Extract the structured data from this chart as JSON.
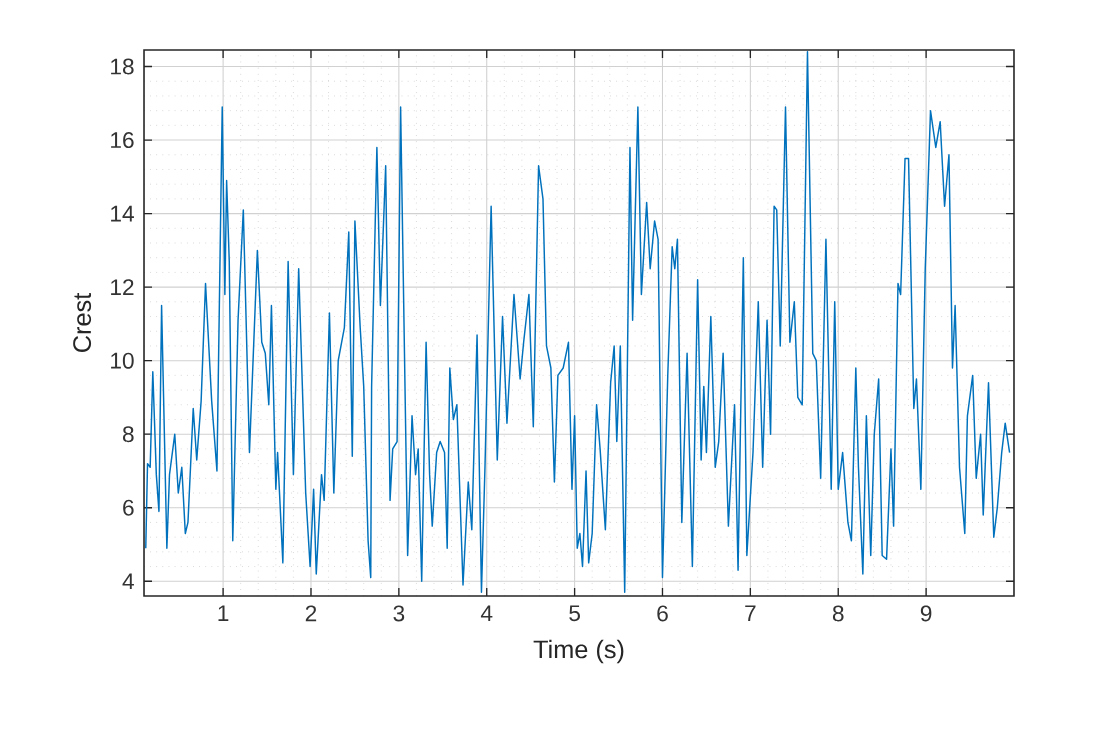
{
  "chart_data": {
    "type": "line",
    "xlabel": "Time (s)",
    "ylabel": "Crest",
    "xlim": [
      0.1,
      10
    ],
    "ylim": [
      3.6,
      18.45
    ],
    "xticks": [
      1,
      2,
      3,
      4,
      5,
      6,
      7,
      8,
      9
    ],
    "yticks": [
      4,
      6,
      8,
      10,
      12,
      14,
      16,
      18
    ],
    "grid": true,
    "line_style": "solid",
    "marker": "none",
    "series": [
      {
        "color": "#0072bd",
        "x": [
          0.12,
          0.14,
          0.17,
          0.2,
          0.24,
          0.27,
          0.3,
          0.36,
          0.39,
          0.45,
          0.49,
          0.53,
          0.57,
          0.6,
          0.66,
          0.7,
          0.75,
          0.8,
          0.87,
          0.93,
          0.99,
          1.02,
          1.04,
          1.07,
          1.11,
          1.17,
          1.23,
          1.3,
          1.39,
          1.44,
          1.48,
          1.52,
          1.55,
          1.6,
          1.62,
          1.68,
          1.74,
          1.8,
          1.86,
          1.94,
          1.99,
          2.03,
          2.06,
          2.12,
          2.15,
          2.21,
          2.26,
          2.31,
          2.38,
          2.43,
          2.47,
          2.5,
          2.56,
          2.6,
          2.65,
          2.68,
          2.69,
          2.75,
          2.79,
          2.85,
          2.9,
          2.93,
          2.98,
          3.02,
          3.1,
          3.15,
          3.19,
          3.22,
          3.26,
          3.31,
          3.35,
          3.38,
          3.43,
          3.47,
          3.52,
          3.55,
          3.58,
          3.62,
          3.66,
          3.73,
          3.79,
          3.83,
          3.89,
          3.94,
          3.98,
          4.05,
          4.12,
          4.18,
          4.23,
          4.31,
          4.38,
          4.42,
          4.48,
          4.53,
          4.59,
          4.64,
          4.68,
          4.73,
          4.77,
          4.81,
          4.87,
          4.93,
          4.97,
          5.0,
          5.03,
          5.06,
          5.09,
          5.13,
          5.16,
          5.2,
          5.25,
          5.29,
          5.35,
          5.41,
          5.45,
          5.48,
          5.52,
          5.57,
          5.63,
          5.66,
          5.72,
          5.76,
          5.82,
          5.86,
          5.91,
          5.95,
          6.0,
          6.06,
          6.11,
          6.14,
          6.17,
          6.22,
          6.28,
          6.34,
          6.4,
          6.44,
          6.47,
          6.5,
          6.55,
          6.6,
          6.64,
          6.69,
          6.75,
          6.82,
          6.86,
          6.92,
          6.96,
          7.03,
          7.09,
          7.14,
          7.19,
          7.23,
          7.27,
          7.3,
          7.34,
          7.4,
          7.45,
          7.5,
          7.54,
          7.59,
          7.65,
          7.71,
          7.75,
          7.8,
          7.86,
          7.92,
          7.96,
          8.0,
          8.05,
          8.11,
          8.15,
          8.2,
          8.23,
          8.28,
          8.32,
          8.37,
          8.41,
          8.46,
          8.5,
          8.55,
          8.6,
          8.63,
          8.68,
          8.71,
          8.76,
          8.8,
          8.86,
          8.89,
          8.94,
          8.99,
          9.05,
          9.11,
          9.16,
          9.21,
          9.26,
          9.3,
          9.33,
          9.38,
          9.44,
          9.47,
          9.53,
          9.57,
          9.62,
          9.65,
          9.71,
          9.77,
          9.81,
          9.86,
          9.9,
          9.95
        ],
        "values": [
          4.9,
          7.2,
          7.1,
          9.7,
          6.9,
          5.9,
          11.5,
          4.9,
          6.9,
          8.0,
          6.4,
          7.1,
          5.3,
          5.6,
          8.7,
          7.3,
          8.9,
          12.1,
          8.9,
          7.0,
          16.9,
          11.8,
          14.9,
          12.7,
          5.1,
          11.1,
          14.1,
          7.5,
          13.0,
          10.5,
          10.2,
          8.8,
          11.5,
          6.5,
          7.5,
          4.5,
          12.7,
          6.9,
          12.5,
          6.4,
          4.4,
          6.5,
          4.2,
          6.9,
          6.2,
          11.3,
          6.4,
          10.0,
          10.9,
          13.5,
          7.4,
          13.8,
          10.9,
          9.3,
          5.1,
          4.1,
          9.3,
          15.8,
          11.5,
          15.3,
          6.2,
          7.6,
          7.8,
          16.9,
          4.7,
          8.5,
          6.9,
          7.6,
          4.0,
          10.5,
          6.9,
          5.5,
          7.5,
          7.8,
          7.5,
          4.9,
          9.8,
          8.4,
          8.8,
          3.9,
          6.7,
          5.4,
          10.7,
          3.7,
          7.1,
          14.2,
          7.3,
          11.2,
          8.3,
          11.8,
          9.5,
          10.5,
          11.8,
          8.2,
          15.3,
          14.4,
          10.4,
          9.8,
          6.7,
          9.6,
          9.8,
          10.5,
          6.5,
          8.5,
          4.9,
          5.3,
          4.4,
          7.0,
          4.5,
          5.3,
          8.8,
          7.6,
          5.4,
          9.4,
          10.4,
          7.8,
          10.4,
          3.7,
          15.8,
          11.1,
          16.9,
          11.8,
          14.3,
          12.5,
          13.8,
          13.3,
          4.1,
          9.6,
          13.1,
          12.5,
          13.3,
          5.6,
          10.2,
          4.4,
          12.2,
          7.3,
          9.3,
          7.5,
          11.2,
          7.1,
          7.8,
          10.2,
          5.5,
          8.8,
          4.3,
          12.8,
          4.7,
          7.5,
          11.6,
          7.1,
          11.1,
          8.0,
          14.2,
          14.1,
          10.4,
          16.9,
          10.5,
          11.6,
          9.0,
          8.8,
          18.4,
          10.2,
          10.0,
          6.8,
          13.3,
          6.5,
          11.6,
          6.5,
          7.5,
          5.6,
          5.1,
          9.8,
          7.1,
          4.2,
          8.5,
          4.7,
          8.0,
          9.5,
          4.7,
          4.6,
          7.6,
          5.5,
          12.1,
          11.8,
          15.5,
          15.5,
          8.7,
          9.5,
          6.5,
          12.5,
          16.8,
          15.8,
          16.5,
          14.2,
          15.6,
          9.8,
          11.5,
          7.1,
          5.3,
          8.5,
          9.6,
          6.8,
          8.0,
          5.8,
          9.4,
          5.2,
          6.0,
          7.5,
          8.3,
          7.5
        ]
      }
    ]
  }
}
